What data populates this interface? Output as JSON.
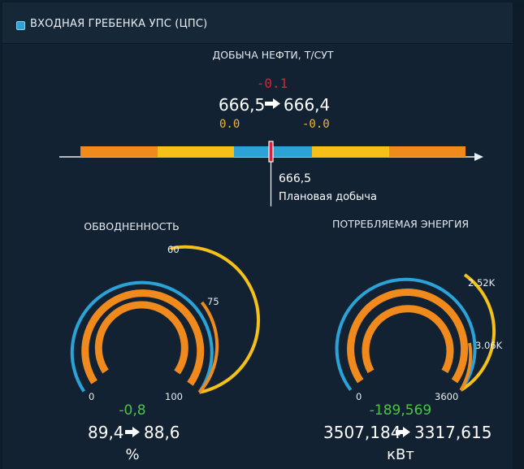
{
  "header": {
    "title": "ВХОДНАЯ ГРЕБЕНКА УПС (ЦПС)"
  },
  "oil": {
    "title": "ДОБЫЧА НЕФТИ, Т/СУТ",
    "delta": "-0.1",
    "from": "666,5",
    "to": "666,4",
    "left_small": "0.0",
    "right_small": "-0.0",
    "plan_value": "666,5",
    "plan_label": "Плановая добыча"
  },
  "water": {
    "title": "ОБВОДНЕННОСТЬ",
    "tick_60": "60",
    "tick_75": "75",
    "min": "0",
    "max": "100",
    "delta": "-0,8",
    "from": "89,4",
    "to": "88,6",
    "unit": "%",
    "value_fraction": 0.886
  },
  "energy": {
    "title": "ПОТРЕБЛЯЕМАЯ ЭНЕРГИЯ",
    "tick_a": "2.52K",
    "tick_b": "3.06K",
    "min": "0",
    "max": "3600",
    "delta": "-189,569",
    "from": "3507,184",
    "to": "3317,615",
    "unit": "кВт",
    "value_fraction": 0.921
  },
  "colors": {
    "orange": "#f08a1c",
    "yellow": "#f5c118",
    "blue": "#2ba3d6",
    "red": "#d9233a",
    "green": "#4cc34a"
  }
}
